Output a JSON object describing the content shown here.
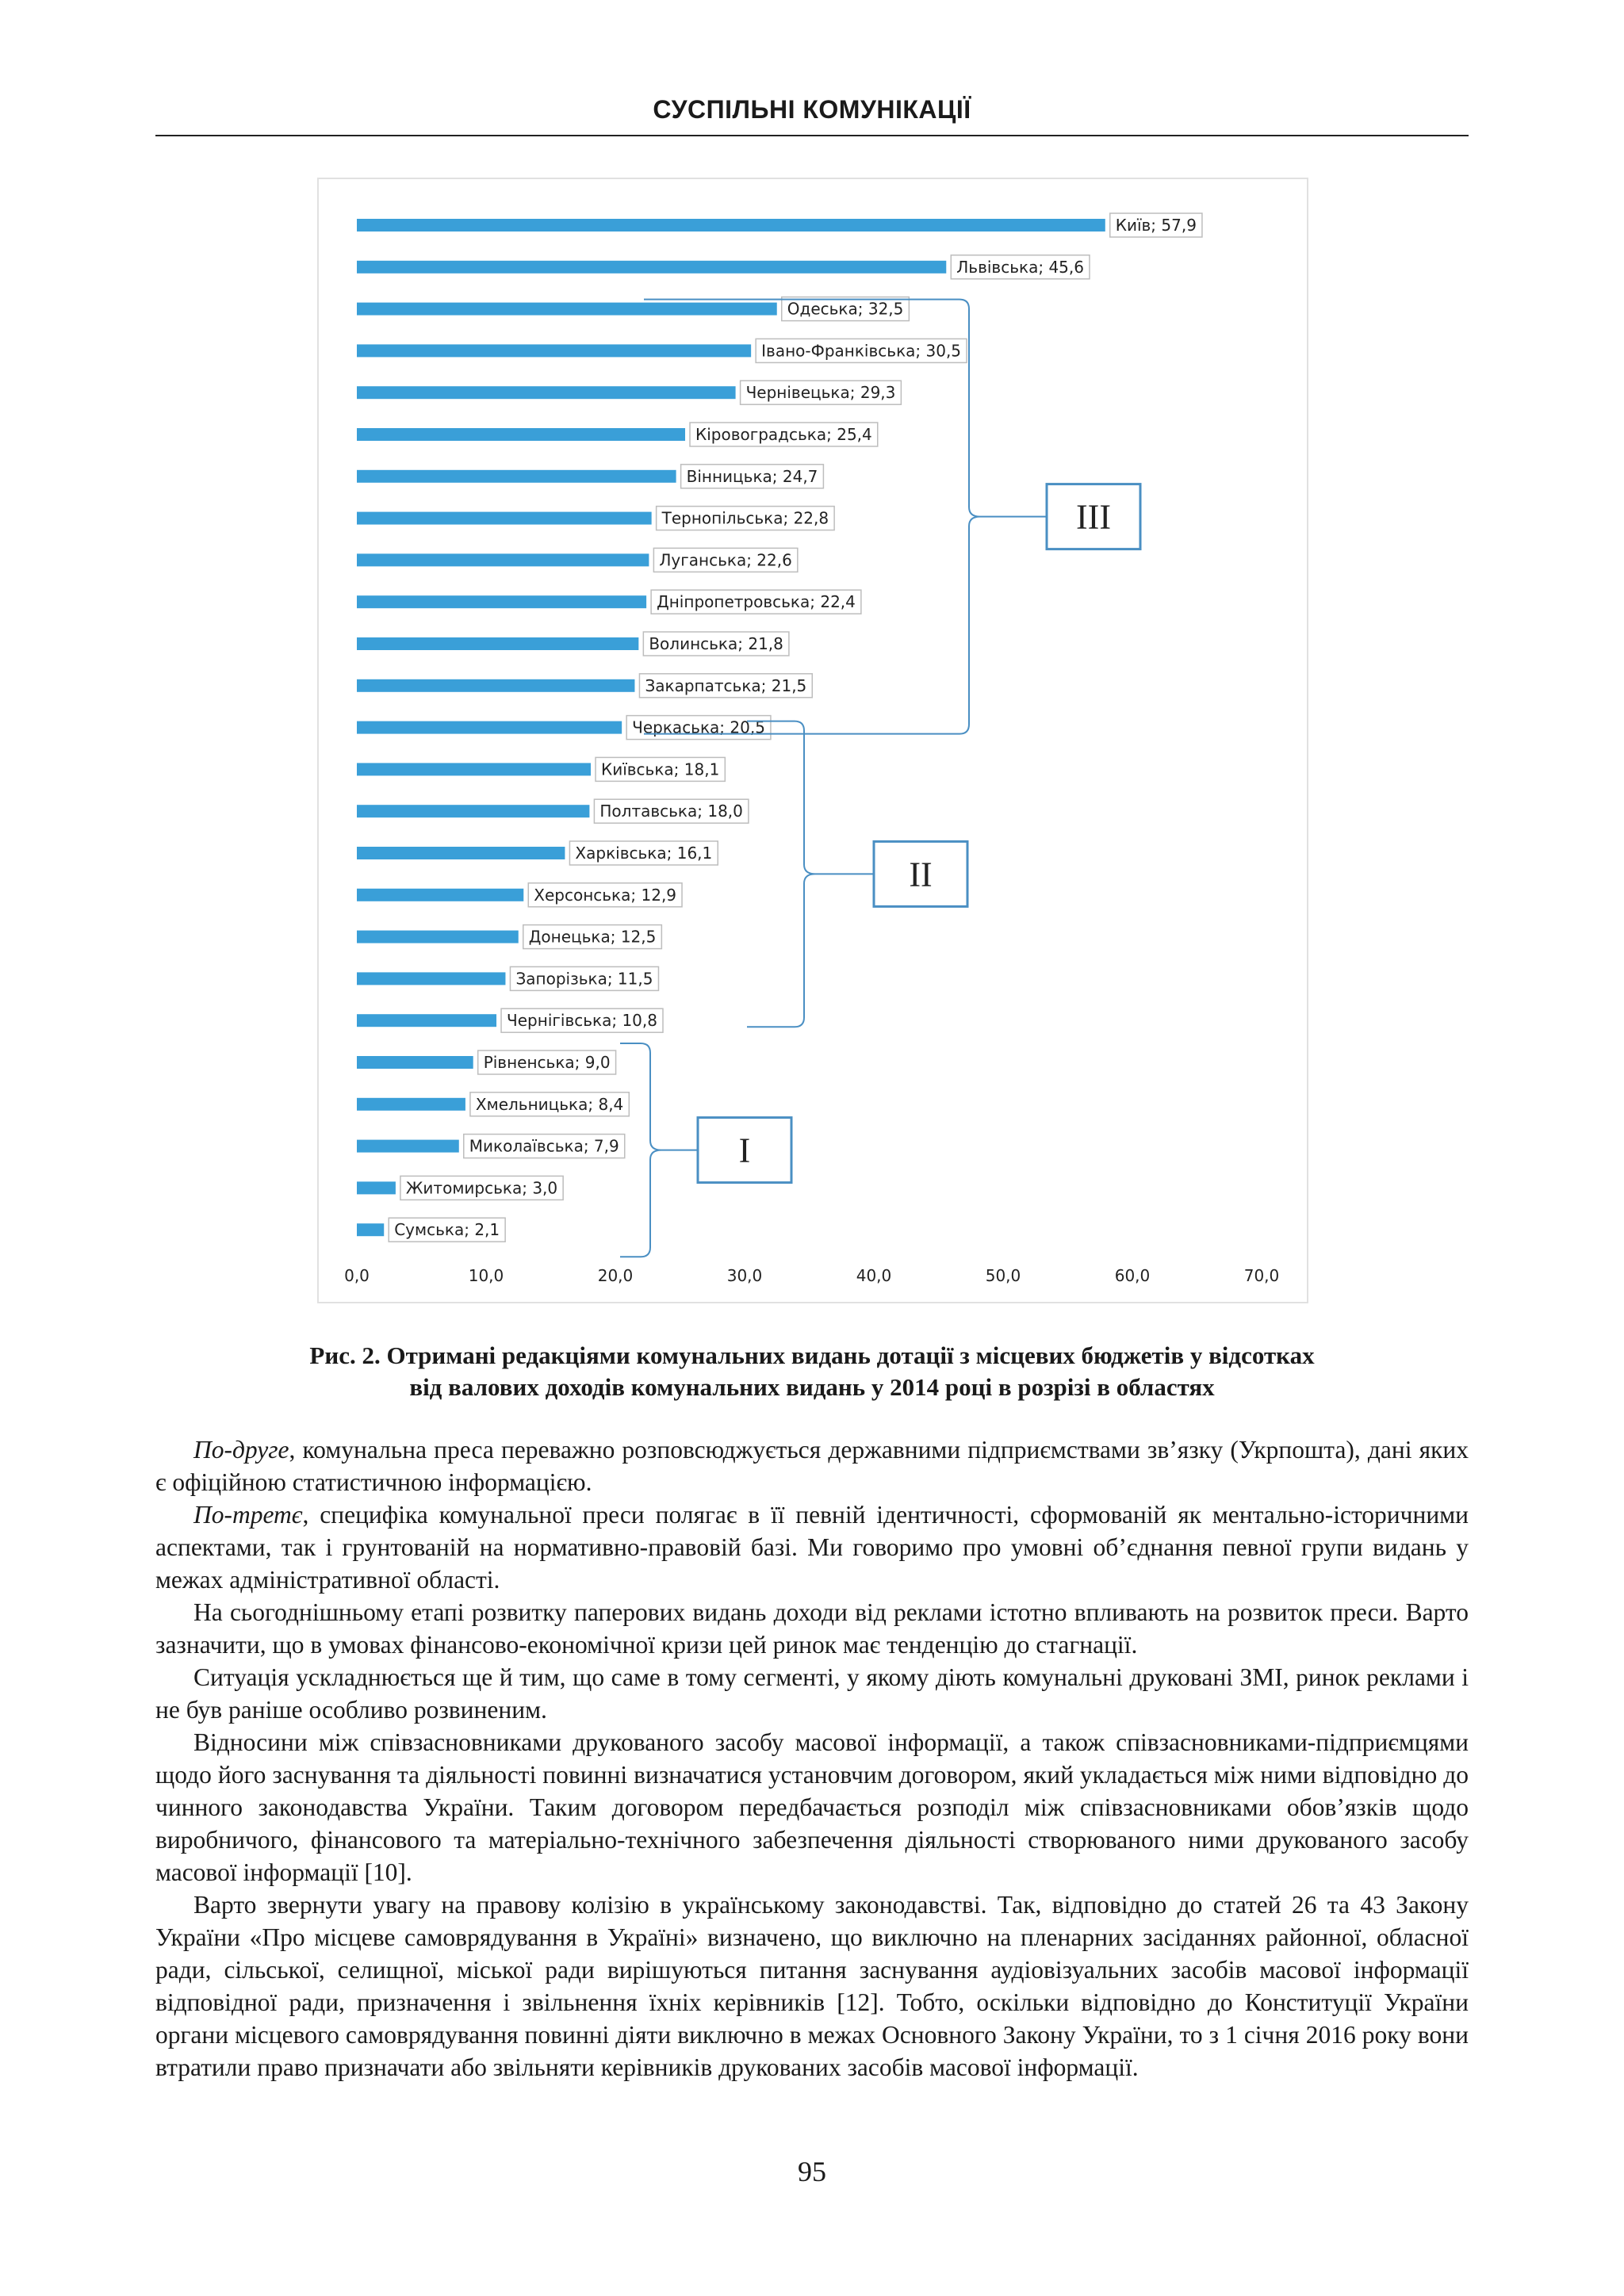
{
  "header": {
    "title": "СУСПІЛЬНІ КОМУНІКАЦІЇ"
  },
  "chart_data": {
    "type": "bar",
    "orientation": "horizontal",
    "categories": [
      "Київ",
      "Львівська",
      "Одеська",
      "Івано-Франківська",
      "Чернівецька",
      "Кіровоградська",
      "Вінницька",
      "Тернопільська",
      "Луганська",
      "Дніпропетровська",
      "Волинська",
      "Закарпатська",
      "Черкаська",
      "Київська",
      "Полтавська",
      "Харківська",
      "Херсонська",
      "Донецька",
      "Запорізька",
      "Чернігівська",
      "Рівненська",
      "Хмельницька",
      "Миколаївська",
      "Житомирська",
      "Сумська"
    ],
    "values": [
      57.9,
      45.6,
      32.5,
      30.5,
      29.3,
      25.4,
      24.7,
      22.8,
      22.6,
      22.4,
      21.8,
      21.5,
      20.5,
      18.1,
      18.0,
      16.1,
      12.9,
      12.5,
      11.5,
      10.8,
      9.0,
      8.4,
      7.9,
      3.0,
      2.1
    ],
    "value_labels": [
      "57,9",
      "45,6",
      "32,5",
      "30,5",
      "29,3",
      "25,4",
      "24,7",
      "22,8",
      "22,6",
      "22,4",
      "21,8",
      "21,5",
      "20,5",
      "18,1",
      "18,0",
      "16,1",
      "12,9",
      "12,5",
      "11,5",
      "10,8",
      "9,0",
      "8,4",
      "7,9",
      "3,0",
      "2,1"
    ],
    "xlim": [
      0,
      70
    ],
    "x_ticks": [
      "0,0",
      "10,0",
      "20,0",
      "30,0",
      "40,0",
      "50,0",
      "60,0",
      "70,0"
    ],
    "bar_color": "#3a9fd8",
    "bracket_color": "#4a8fc3",
    "groups": [
      {
        "label": "III",
        "from": "Одеська",
        "to": "Черкаська"
      },
      {
        "label": "II",
        "from": "Черкаська",
        "to": "Чернігівська"
      },
      {
        "label": "I",
        "from": "Рівненська",
        "to": "Сумська"
      }
    ]
  },
  "caption": {
    "line1": "Рис. 2. Отримані редакціями комунальних видань дотації з місцевих бюджетів у відсотках",
    "line2": "від валових доходів комунальних видань у 2014 році в розрізі в областях"
  },
  "paragraphs": [
    {
      "lead": "По-друге",
      "text": ", комунальна преса переважно розповсюджується державними підприємствами зв’язку (Укрпошта), дані яких є офіційною статистичною інформацією."
    },
    {
      "lead": "По-третє",
      "text": ", специфіка комунальної преси полягає в її певній ідентичності, сформованій як ментально-історичними аспектами, так і грунтованій на нормативно-правовій базі. Ми говоримо про умовні об’єднання певної групи видань у межах адміністративної області."
    },
    {
      "lead": "",
      "text": "На сьогоднішньому етапі розвитку паперових видань доходи від реклами істотно впливають на розвиток преси. Варто зазначити, що в умовах фінансово-економічної кризи цей ринок має тенденцію до стагнації."
    },
    {
      "lead": "",
      "text": "Ситуація ускладнюється ще й тим, що саме в тому сегменті, у якому діють комунальні друковані ЗМІ, ринок реклами і не був раніше особливо розвиненим."
    },
    {
      "lead": "",
      "text": "Відносини між співзасновниками друкованого засобу масової інформації, а також співзасновниками-підприємцями щодо його заснування та діяльності повинні визначатися установчим договором, який укладається між ними відповідно до чинного законодавства України. Таким договором передбачається розподіл між співзасновниками обов’язків щодо виробничого, фінансового та матеріально-технічного забезпечення діяльності створюваного ними друкованого засобу масової інформації [10]."
    },
    {
      "lead": "",
      "text": "Варто звернути увагу на правову колізію в українському законодавстві. Так, відповідно до статей 26 та 43 Закону України «Про місцеве самоврядування в Україні» визначено, що виключно на пленарних засіданнях районної, обласної ради, сільської, селищної, міської ради вирішуються питання заснування аудіовізуальних засобів масової інформації відповідної ради, призначення і звільнення їхніх керівників [12]. Тобто, оскільки відповідно до Конституції України органи місцевого самоврядування повинні діяти виключно в межах Основного Закону України, то з 1 січня 2016 року вони втратили право призначати або звільняти керівників друкованих засобів масової інформації."
    }
  ],
  "page_number": "95"
}
